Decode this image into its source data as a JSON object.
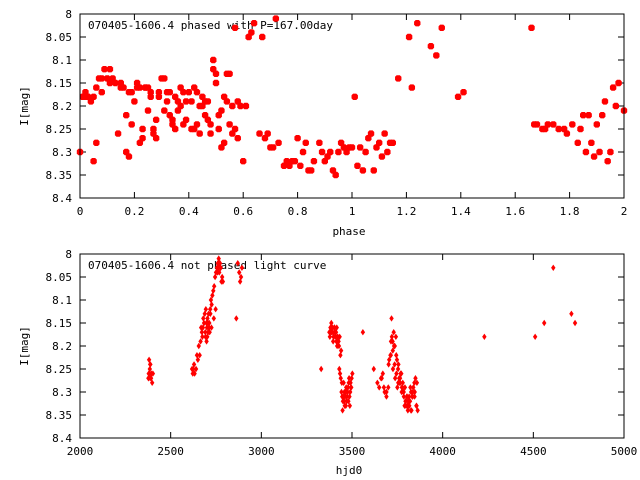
{
  "colors": {
    "points": "#ff0000",
    "axes": "#000000",
    "background": "#ffffff"
  },
  "chart_data": [
    {
      "type": "scatter",
      "title": "070405-1606.4 phased with P=167.00day",
      "xlabel": "phase",
      "ylabel": "I[mag]",
      "xlim": [
        0,
        2
      ],
      "ylim": [
        8.4,
        8.0
      ],
      "y_inverted": true,
      "x_ticks": [
        "0",
        "0.2",
        "0.4",
        "0.6",
        "0.8",
        "1",
        "1.2",
        "1.4",
        "1.6",
        "1.8",
        "2"
      ],
      "y_ticks": [
        "8",
        "8.05",
        "8.1",
        "8.15",
        "8.2",
        "8.25",
        "8.3",
        "8.35",
        "8.4"
      ],
      "marker": "filled-square",
      "series": [
        {
          "x": [
            0.0,
            0.01,
            0.02,
            0.04,
            0.05,
            0.06,
            0.07,
            0.08,
            0.09,
            0.1,
            0.11,
            0.13,
            0.15,
            0.16,
            0.17,
            0.18,
            0.19,
            0.2,
            0.21,
            0.22,
            0.23,
            0.24,
            0.25,
            0.26,
            0.27,
            0.28,
            0.29,
            0.3,
            0.31,
            0.32,
            0.33,
            0.34,
            0.35,
            0.36,
            0.37,
            0.38,
            0.39,
            0.4,
            0.41,
            0.42,
            0.43,
            0.44,
            0.45,
            0.46,
            0.47,
            0.48,
            0.49,
            0.5,
            0.51,
            0.52,
            0.53,
            0.54,
            0.55,
            0.56,
            0.57,
            0.58,
            0.59,
            0.6,
            0.62,
            0.63,
            0.64,
            0.66,
            0.67,
            0.68,
            0.69,
            0.7,
            0.71,
            0.72,
            0.73,
            0.75,
            0.76,
            0.77,
            0.78,
            0.79,
            0.8,
            0.81,
            0.82,
            0.83,
            0.84,
            0.85,
            0.86,
            0.88,
            0.89,
            0.9,
            0.91,
            0.92,
            0.93,
            0.94,
            0.95,
            0.96,
            0.97,
            0.98,
            0.99,
            1.0,
            1.01,
            1.02,
            1.03,
            1.04,
            1.05,
            1.06,
            1.07,
            1.08,
            1.09,
            1.1,
            1.11,
            1.12,
            1.13,
            1.14,
            1.15,
            1.17,
            1.21,
            1.22,
            1.24,
            1.29,
            1.31,
            1.33,
            1.39,
            1.41,
            1.66,
            1.67,
            1.68,
            1.7,
            1.71,
            1.72,
            1.74,
            1.76,
            1.78,
            1.79,
            1.81,
            1.83,
            1.84,
            1.85,
            1.86,
            1.87,
            1.88,
            1.89,
            1.9,
            1.91,
            1.92,
            1.93,
            1.94,
            1.95,
            1.96,
            1.97,
            1.98,
            2.0,
            0.02,
            0.05,
            0.08,
            0.12,
            0.15,
            0.18,
            0.21,
            0.24,
            0.26,
            0.29,
            0.31,
            0.33,
            0.36,
            0.38,
            0.41,
            0.43,
            0.45,
            0.47,
            0.5,
            0.52,
            0.55,
            0.58,
            0.61,
            0.19,
            0.23,
            0.27,
            0.34,
            0.39,
            0.44,
            0.48,
            0.53,
            0.57,
            0.14,
            0.22,
            0.28,
            0.35,
            0.42,
            0.46,
            0.51,
            0.56,
            0.54,
            0.49,
            0.37,
            0.32,
            0.25,
            0.17,
            0.11,
            0.06,
            0.03
          ],
          "y": [
            8.3,
            8.18,
            8.18,
            8.19,
            8.32,
            8.28,
            8.14,
            8.17,
            8.12,
            8.14,
            8.12,
            8.15,
            8.15,
            8.16,
            8.3,
            8.31,
            8.17,
            8.19,
            8.15,
            8.16,
            8.25,
            8.16,
            8.16,
            8.18,
            8.26,
            8.23,
            8.17,
            8.14,
            8.21,
            8.19,
            8.22,
            8.23,
            8.18,
            8.21,
            8.16,
            8.24,
            8.19,
            8.17,
            8.25,
            8.16,
            8.24,
            8.2,
            8.18,
            8.22,
            8.23,
            8.26,
            8.12,
            8.15,
            8.25,
            8.29,
            8.18,
            8.19,
            8.24,
            8.2,
            8.03,
            8.27,
            8.2,
            8.32,
            8.05,
            8.04,
            8.02,
            8.26,
            8.05,
            8.27,
            8.26,
            8.29,
            8.29,
            8.01,
            8.28,
            8.33,
            8.32,
            8.33,
            8.32,
            8.32,
            8.27,
            8.33,
            8.3,
            8.28,
            8.34,
            8.34,
            8.32,
            8.28,
            8.3,
            8.32,
            8.31,
            8.3,
            8.34,
            8.35,
            8.3,
            8.28,
            8.29,
            8.3,
            8.29,
            8.29,
            8.18,
            8.33,
            8.29,
            8.34,
            8.3,
            8.27,
            8.26,
            8.34,
            8.29,
            8.28,
            8.31,
            8.26,
            8.3,
            8.28,
            8.28,
            8.14,
            8.05,
            8.16,
            8.02,
            8.07,
            8.09,
            8.03,
            8.18,
            8.17,
            8.03,
            8.24,
            8.24,
            8.25,
            8.25,
            8.24,
            8.24,
            8.25,
            8.25,
            8.26,
            8.24,
            8.28,
            8.25,
            8.22,
            8.3,
            8.22,
            8.28,
            8.31,
            8.24,
            8.3,
            8.22,
            8.19,
            8.32,
            8.3,
            8.16,
            8.2,
            8.15,
            8.21,
            8.17,
            8.18,
            8.14,
            8.14,
            8.16,
            8.17,
            8.16,
            8.16,
            8.17,
            8.18,
            8.14,
            8.17,
            8.19,
            8.17,
            8.19,
            8.17,
            8.2,
            8.19,
            8.13,
            8.21,
            8.13,
            8.19,
            8.2,
            8.24,
            8.27,
            8.25,
            8.24,
            8.23,
            8.26,
            8.24,
            8.28,
            8.25,
            8.26,
            8.28,
            8.27,
            8.25,
            8.25,
            8.19,
            8.22,
            8.26,
            8.13,
            8.1,
            8.2,
            8.17,
            8.21,
            8.22,
            8.15,
            8.16,
            8.18
          ]
        }
      ]
    },
    {
      "type": "scatter",
      "title": "070405-1606.4 not phased light curve",
      "xlabel": "hjd0",
      "ylabel": "I[mag]",
      "xlim": [
        2000,
        5000
      ],
      "ylim": [
        8.4,
        8.0
      ],
      "y_inverted": true,
      "x_ticks": [
        "2000",
        "2500",
        "3000",
        "3500",
        "4000",
        "4500",
        "5000"
      ],
      "y_ticks": [
        "8",
        "8.05",
        "8.1",
        "8.15",
        "8.2",
        "8.25",
        "8.3",
        "8.35",
        "8.4"
      ],
      "marker": "diamond",
      "series": [
        {
          "x": [
            2377,
            2379,
            2381,
            2383,
            2385,
            2387,
            2390,
            2394,
            2398,
            2402,
            2380,
            2384,
            2388,
            2392,
            2618,
            2622,
            2625,
            2629,
            2632,
            2640,
            2655,
            2668,
            2675,
            2680,
            2684,
            2688,
            2691,
            2694,
            2697,
            2700,
            2703,
            2706,
            2709,
            2712,
            2715,
            2718,
            2722,
            2726,
            2730,
            2735,
            2740,
            2745,
            2750,
            2755,
            2760,
            2764,
            2768,
            2772,
            2776,
            2780,
            2784,
            2788,
            2692,
            2698,
            2702,
            2707,
            2713,
            2719,
            2725,
            2738,
            2748,
            2758,
            2765,
            2770,
            2775,
            2660,
            2650,
            2645,
            2665,
            2672,
            2678,
            2862,
            2870,
            2878,
            2883,
            2888,
            2893,
            3330,
            3375,
            3381,
            3386,
            3390,
            3394,
            3398,
            3402,
            3406,
            3410,
            3414,
            3418,
            3422,
            3426,
            3430,
            3434,
            3438,
            3442,
            3446,
            3450,
            3454,
            3458,
            3462,
            3466,
            3470,
            3474,
            3478,
            3482,
            3486,
            3490,
            3494,
            3498,
            3502,
            3378,
            3388,
            3396,
            3404,
            3412,
            3420,
            3428,
            3436,
            3444,
            3452,
            3460,
            3468,
            3476,
            3484,
            3492,
            3448,
            3456,
            3464,
            3472,
            3480,
            3488,
            3496,
            3384,
            3392,
            3400,
            3408,
            3416,
            3424,
            3432,
            3440,
            3560,
            3620,
            3640,
            3660,
            3680,
            3700,
            3712,
            3718,
            3724,
            3730,
            3736,
            3742,
            3748,
            3754,
            3760,
            3766,
            3772,
            3778,
            3784,
            3790,
            3796,
            3802,
            3808,
            3814,
            3820,
            3826,
            3832,
            3838,
            3844,
            3850,
            3856,
            3862,
            3650,
            3670,
            3690,
            3705,
            3715,
            3725,
            3735,
            3745,
            3755,
            3765,
            3775,
            3785,
            3795,
            3805,
            3815,
            3825,
            3835,
            3845,
            3855,
            3664,
            3676,
            3690,
            3702,
            3714,
            3726,
            3738,
            3750,
            3762,
            3774,
            3786,
            3798,
            3810,
            3822,
            3834,
            3846,
            3858,
            3720,
            3732,
            3744,
            3756,
            3768,
            3780,
            3792,
            3804,
            3816,
            3828,
            4230,
            4510,
            4560,
            4610,
            4710,
            4730
          ],
          "y": [
            8.27,
            8.26,
            8.23,
            8.26,
            8.25,
            8.24,
            8.27,
            8.26,
            8.28,
            8.26,
            8.27,
            8.26,
            8.24,
            8.27,
            8.25,
            8.26,
            8.25,
            8.24,
            8.26,
            8.25,
            8.2,
            8.16,
            8.18,
            8.14,
            8.15,
            8.13,
            8.17,
            8.12,
            8.15,
            8.16,
            8.14,
            8.15,
            8.13,
            8.16,
            8.17,
            8.12,
            8.1,
            8.11,
            8.09,
            8.08,
            8.07,
            8.05,
            8.04,
            8.03,
            8.02,
            8.03,
            8.04,
            8.02,
            8.03,
            8.06,
            8.05,
            8.06,
            8.18,
            8.19,
            8.18,
            8.17,
            8.15,
            8.13,
            8.16,
            8.14,
            8.12,
            8.04,
            8.01,
            8.02,
            8.03,
            8.22,
            8.23,
            8.22,
            8.19,
            8.17,
            8.16,
            8.14,
            8.02,
            8.04,
            8.06,
            8.05,
            8.03,
            8.25,
            8.17,
            8.16,
            8.15,
            8.16,
            8.17,
            8.18,
            8.16,
            8.17,
            8.18,
            8.19,
            8.2,
            8.18,
            8.19,
            8.25,
            8.26,
            8.27,
            8.3,
            8.31,
            8.32,
            8.28,
            8.3,
            8.31,
            8.33,
            8.32,
            8.3,
            8.29,
            8.28,
            8.31,
            8.3,
            8.29,
            8.27,
            8.26,
            8.18,
            8.17,
            8.19,
            8.16,
            8.17,
            8.18,
            8.2,
            8.22,
            8.28,
            8.31,
            8.33,
            8.29,
            8.3,
            8.27,
            8.28,
            8.34,
            8.32,
            8.3,
            8.31,
            8.32,
            8.33,
            8.29,
            8.17,
            8.16,
            8.18,
            8.17,
            8.16,
            8.19,
            8.18,
            8.21,
            8.17,
            8.25,
            8.28,
            8.27,
            8.3,
            8.29,
            8.22,
            8.14,
            8.19,
            8.17,
            8.2,
            8.18,
            8.23,
            8.25,
            8.27,
            8.28,
            8.26,
            8.29,
            8.3,
            8.33,
            8.32,
            8.31,
            8.34,
            8.33,
            8.32,
            8.3,
            8.31,
            8.29,
            8.28,
            8.27,
            8.33,
            8.34,
            8.29,
            8.26,
            8.3,
            8.23,
            8.19,
            8.21,
            8.24,
            8.26,
            8.28,
            8.27,
            8.29,
            8.3,
            8.32,
            8.33,
            8.31,
            8.34,
            8.3,
            8.31,
            8.33,
            8.27,
            8.29,
            8.31,
            8.24,
            8.22,
            8.25,
            8.27,
            8.29,
            8.28,
            8.3,
            8.31,
            8.33,
            8.32,
            8.29,
            8.31,
            8.3,
            8.28,
            8.18,
            8.2,
            8.22,
            8.24,
            8.26,
            8.28,
            8.29,
            8.31,
            8.33,
            8.34,
            8.18,
            8.18,
            8.15,
            8.03,
            8.13,
            8.15
          ]
        }
      ]
    }
  ]
}
